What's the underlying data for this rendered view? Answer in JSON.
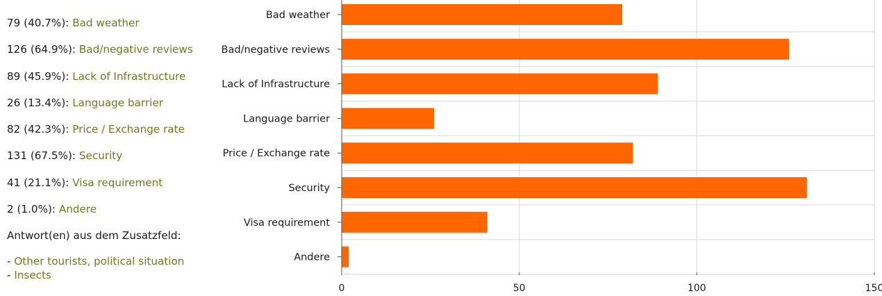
{
  "stats": [
    {
      "count": "79 (40.7%): ",
      "label": "Bad weather"
    },
    {
      "count": "126 (64.9%): ",
      "label": "Bad/negative reviews"
    },
    {
      "count": "89 (45.9%): ",
      "label": "Lack of Infrastructure"
    },
    {
      "count": "26 (13.4%): ",
      "label": "Language barrier"
    },
    {
      "count": "82 (42.3%): ",
      "label": "Price / Exchange rate"
    },
    {
      "count": "131 (67.5%): ",
      "label": "Security"
    },
    {
      "count": "41 (21.1%): ",
      "label": "Visa requirement"
    },
    {
      "count": "2 (1.0%): ",
      "label": "Andere"
    }
  ],
  "extra_heading": "Antwort(en) aus dem Zusatzfeld:",
  "extra_answers": [
    {
      "dash": "- ",
      "text": "Other tourists, political situation"
    },
    {
      "dash": "- ",
      "text": "Insects"
    }
  ],
  "colors": {
    "bar": "#ff6600",
    "label_green": "#6b7b1e",
    "grid": "#d9d9d9"
  },
  "chart_data": {
    "type": "bar",
    "orientation": "horizontal",
    "categories": [
      "Bad weather",
      "Bad/negative reviews",
      "Lack of Infrastructure",
      "Language barrier",
      "Price / Exchange rate",
      "Security",
      "Visa requirement",
      "Andere"
    ],
    "values": [
      79,
      126,
      89,
      26,
      82,
      131,
      41,
      2
    ],
    "xlim": [
      0,
      150
    ],
    "xticks": [
      0,
      50,
      100,
      150
    ],
    "grid": true,
    "title": "",
    "xlabel": "",
    "ylabel": ""
  }
}
